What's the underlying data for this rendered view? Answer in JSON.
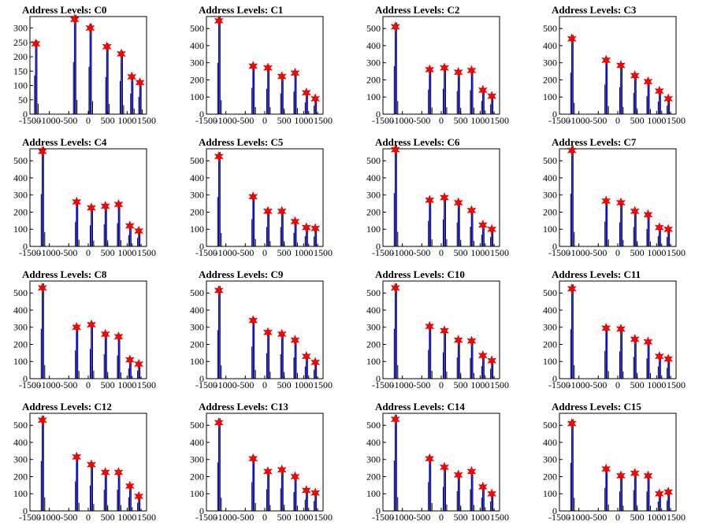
{
  "colors": {
    "histogram": "#000000",
    "fit": "#0000ff",
    "marker": "#ff0000",
    "frame": "#000000"
  },
  "chart_data": [
    {
      "type": "bar",
      "title": "Address Levels: C0",
      "xlim": [
        -1500,
        1500
      ],
      "ylim": [
        0,
        340
      ],
      "yticks": [
        0,
        50,
        100,
        150,
        200,
        250,
        300
      ],
      "xticks": [
        "-1500",
        "-1000",
        "-500",
        "0",
        "500",
        "1000",
        "1500"
      ],
      "peaks": [
        {
          "x": -1350,
          "y": 245
        },
        {
          "x": -350,
          "y": 330
        },
        {
          "x": 50,
          "y": 300
        },
        {
          "x": 480,
          "y": 235
        },
        {
          "x": 850,
          "y": 210
        },
        {
          "x": 1120,
          "y": 130
        },
        {
          "x": 1330,
          "y": 110
        }
      ]
    },
    {
      "type": "bar",
      "title": "Address Levels: C1",
      "xlim": [
        -1500,
        1500
      ],
      "ylim": [
        0,
        570
      ],
      "yticks": [
        0,
        100,
        200,
        300,
        400,
        500
      ],
      "xticks": [
        "-1500",
        "-1000",
        "-500",
        "0",
        "500",
        "1000",
        "1500"
      ],
      "peaks": [
        {
          "x": -1180,
          "y": 545
        },
        {
          "x": -300,
          "y": 280
        },
        {
          "x": 80,
          "y": 270
        },
        {
          "x": 440,
          "y": 220
        },
        {
          "x": 780,
          "y": 240
        },
        {
          "x": 1070,
          "y": 125
        },
        {
          "x": 1300,
          "y": 90
        }
      ]
    },
    {
      "type": "bar",
      "title": "Address Levels: C2",
      "xlim": [
        -1500,
        1500
      ],
      "ylim": [
        0,
        570
      ],
      "yticks": [
        0,
        100,
        200,
        300,
        400,
        500
      ],
      "xticks": [
        "-1500",
        "-1000",
        "-500",
        "0",
        "500",
        "1000",
        "1500"
      ],
      "peaks": [
        {
          "x": -1180,
          "y": 510
        },
        {
          "x": -300,
          "y": 260
        },
        {
          "x": 80,
          "y": 270
        },
        {
          "x": 440,
          "y": 245
        },
        {
          "x": 780,
          "y": 255
        },
        {
          "x": 1070,
          "y": 140
        },
        {
          "x": 1300,
          "y": 105
        }
      ]
    },
    {
      "type": "bar",
      "title": "Address Levels: C3",
      "xlim": [
        -1500,
        1500
      ],
      "ylim": [
        0,
        570
      ],
      "yticks": [
        0,
        100,
        200,
        300,
        400,
        500
      ],
      "xticks": [
        "-1500",
        "-1000",
        "-500",
        "0",
        "500",
        "1000",
        "1500"
      ],
      "peaks": [
        {
          "x": -1180,
          "y": 440
        },
        {
          "x": -300,
          "y": 315
        },
        {
          "x": 80,
          "y": 285
        },
        {
          "x": 440,
          "y": 225
        },
        {
          "x": 780,
          "y": 190
        },
        {
          "x": 1070,
          "y": 135
        },
        {
          "x": 1300,
          "y": 90
        }
      ]
    },
    {
      "type": "bar",
      "title": "Address Levels: C4",
      "xlim": [
        -1500,
        1500
      ],
      "ylim": [
        0,
        570
      ],
      "yticks": [
        0,
        100,
        200,
        300,
        400,
        500
      ],
      "xticks": [
        "-1500",
        "-1000",
        "-500",
        "0",
        "500",
        "1000",
        "1500"
      ],
      "peaks": [
        {
          "x": -1180,
          "y": 555
        },
        {
          "x": -300,
          "y": 260
        },
        {
          "x": 80,
          "y": 225
        },
        {
          "x": 440,
          "y": 235
        },
        {
          "x": 780,
          "y": 245
        },
        {
          "x": 1070,
          "y": 120
        },
        {
          "x": 1300,
          "y": 90
        }
      ]
    },
    {
      "type": "bar",
      "title": "Address Levels: C5",
      "xlim": [
        -1500,
        1500
      ],
      "ylim": [
        0,
        570
      ],
      "yticks": [
        0,
        100,
        200,
        300,
        400,
        500
      ],
      "xticks": [
        "-1500",
        "-1000",
        "-500",
        "0",
        "500",
        "1000",
        "1500"
      ],
      "peaks": [
        {
          "x": -1180,
          "y": 525
        },
        {
          "x": -300,
          "y": 290
        },
        {
          "x": 80,
          "y": 205
        },
        {
          "x": 440,
          "y": 205
        },
        {
          "x": 780,
          "y": 145
        },
        {
          "x": 1070,
          "y": 110
        },
        {
          "x": 1300,
          "y": 105
        }
      ]
    },
    {
      "type": "bar",
      "title": "Address Levels: C6",
      "xlim": [
        -1500,
        1500
      ],
      "ylim": [
        0,
        570
      ],
      "yticks": [
        0,
        100,
        200,
        300,
        400,
        500
      ],
      "xticks": [
        "-1500",
        "-1000",
        "-500",
        "0",
        "500",
        "1000",
        "1500"
      ],
      "peaks": [
        {
          "x": -1180,
          "y": 565
        },
        {
          "x": -300,
          "y": 270
        },
        {
          "x": 80,
          "y": 285
        },
        {
          "x": 440,
          "y": 255
        },
        {
          "x": 780,
          "y": 210
        },
        {
          "x": 1070,
          "y": 125
        },
        {
          "x": 1300,
          "y": 100
        }
      ]
    },
    {
      "type": "bar",
      "title": "Address Levels: C7",
      "xlim": [
        -1500,
        1500
      ],
      "ylim": [
        0,
        570
      ],
      "yticks": [
        0,
        100,
        200,
        300,
        400,
        500
      ],
      "xticks": [
        "-1500",
        "-1000",
        "-500",
        "0",
        "500",
        "1000",
        "1500"
      ],
      "peaks": [
        {
          "x": -1180,
          "y": 560
        },
        {
          "x": -300,
          "y": 265
        },
        {
          "x": 80,
          "y": 255
        },
        {
          "x": 440,
          "y": 205
        },
        {
          "x": 780,
          "y": 185
        },
        {
          "x": 1070,
          "y": 110
        },
        {
          "x": 1300,
          "y": 100
        }
      ]
    },
    {
      "type": "bar",
      "title": "Address Levels: C8",
      "xlim": [
        -1500,
        1500
      ],
      "ylim": [
        0,
        570
      ],
      "yticks": [
        0,
        100,
        200,
        300,
        400,
        500
      ],
      "xticks": [
        "-1500",
        "-1000",
        "-500",
        "0",
        "500",
        "1000",
        "1500"
      ],
      "peaks": [
        {
          "x": -1180,
          "y": 530
        },
        {
          "x": -300,
          "y": 300
        },
        {
          "x": 80,
          "y": 315
        },
        {
          "x": 440,
          "y": 260
        },
        {
          "x": 780,
          "y": 245
        },
        {
          "x": 1070,
          "y": 110
        },
        {
          "x": 1300,
          "y": 85
        }
      ]
    },
    {
      "type": "bar",
      "title": "Address Levels: C9",
      "xlim": [
        -1500,
        1500
      ],
      "ylim": [
        0,
        570
      ],
      "yticks": [
        0,
        100,
        200,
        300,
        400,
        500
      ],
      "xticks": [
        "-1500",
        "-1000",
        "-500",
        "0",
        "500",
        "1000",
        "1500"
      ],
      "peaks": [
        {
          "x": -1180,
          "y": 515
        },
        {
          "x": -300,
          "y": 340
        },
        {
          "x": 80,
          "y": 270
        },
        {
          "x": 440,
          "y": 260
        },
        {
          "x": 780,
          "y": 225
        },
        {
          "x": 1070,
          "y": 130
        },
        {
          "x": 1300,
          "y": 95
        }
      ]
    },
    {
      "type": "bar",
      "title": "Address Levels: C10",
      "xlim": [
        -1500,
        1500
      ],
      "ylim": [
        0,
        570
      ],
      "yticks": [
        0,
        100,
        200,
        300,
        400,
        500
      ],
      "xticks": [
        "-1500",
        "-1000",
        "-500",
        "0",
        "500",
        "1000",
        "1500"
      ],
      "peaks": [
        {
          "x": -1180,
          "y": 530
        },
        {
          "x": -300,
          "y": 305
        },
        {
          "x": 80,
          "y": 280
        },
        {
          "x": 440,
          "y": 225
        },
        {
          "x": 780,
          "y": 220
        },
        {
          "x": 1070,
          "y": 135
        },
        {
          "x": 1300,
          "y": 105
        }
      ]
    },
    {
      "type": "bar",
      "title": "Address Levels: C11",
      "xlim": [
        -1500,
        1500
      ],
      "ylim": [
        0,
        570
      ],
      "yticks": [
        0,
        100,
        200,
        300,
        400,
        500
      ],
      "xticks": [
        "-1500",
        "-1000",
        "-500",
        "0",
        "500",
        "1000",
        "1500"
      ],
      "peaks": [
        {
          "x": -1180,
          "y": 525
        },
        {
          "x": -300,
          "y": 295
        },
        {
          "x": 80,
          "y": 290
        },
        {
          "x": 440,
          "y": 230
        },
        {
          "x": 780,
          "y": 215
        },
        {
          "x": 1070,
          "y": 130
        },
        {
          "x": 1300,
          "y": 115
        }
      ]
    },
    {
      "type": "bar",
      "title": "Address Levels: C12",
      "xlim": [
        -1500,
        1500
      ],
      "ylim": [
        0,
        570
      ],
      "yticks": [
        0,
        100,
        200,
        300,
        400,
        500
      ],
      "xticks": [
        "-1500",
        "-1000",
        "-500",
        "0",
        "500",
        "1000",
        "1500"
      ],
      "peaks": [
        {
          "x": -1180,
          "y": 530
        },
        {
          "x": -300,
          "y": 315
        },
        {
          "x": 80,
          "y": 270
        },
        {
          "x": 440,
          "y": 225
        },
        {
          "x": 780,
          "y": 225
        },
        {
          "x": 1070,
          "y": 145
        },
        {
          "x": 1300,
          "y": 85
        }
      ]
    },
    {
      "type": "bar",
      "title": "Address Levels: C13",
      "xlim": [
        -1500,
        1500
      ],
      "ylim": [
        0,
        570
      ],
      "yticks": [
        0,
        100,
        200,
        300,
        400,
        500
      ],
      "xticks": [
        "-1500",
        "-1000",
        "-500",
        "0",
        "500",
        "1000",
        "1500"
      ],
      "peaks": [
        {
          "x": -1180,
          "y": 515
        },
        {
          "x": -300,
          "y": 305
        },
        {
          "x": 80,
          "y": 230
        },
        {
          "x": 440,
          "y": 240
        },
        {
          "x": 780,
          "y": 200
        },
        {
          "x": 1070,
          "y": 120
        },
        {
          "x": 1300,
          "y": 105
        }
      ]
    },
    {
      "type": "bar",
      "title": "Address Levels: C14",
      "xlim": [
        -1500,
        1500
      ],
      "ylim": [
        0,
        570
      ],
      "yticks": [
        0,
        100,
        200,
        300,
        400,
        500
      ],
      "xticks": [
        "-1500",
        "-1000",
        "-500",
        "0",
        "500",
        "1000",
        "1500"
      ],
      "peaks": [
        {
          "x": -1180,
          "y": 535
        },
        {
          "x": -300,
          "y": 305
        },
        {
          "x": 80,
          "y": 255
        },
        {
          "x": 440,
          "y": 210
        },
        {
          "x": 780,
          "y": 230
        },
        {
          "x": 1070,
          "y": 140
        },
        {
          "x": 1300,
          "y": 100
        }
      ]
    },
    {
      "type": "bar",
      "title": "Address Levels: C15",
      "xlim": [
        -1500,
        1500
      ],
      "ylim": [
        0,
        570
      ],
      "yticks": [
        0,
        100,
        200,
        300,
        400,
        500
      ],
      "xticks": [
        "-1500",
        "-1000",
        "-500",
        "0",
        "500",
        "1000",
        "1500"
      ],
      "peaks": [
        {
          "x": -1180,
          "y": 510
        },
        {
          "x": -300,
          "y": 245
        },
        {
          "x": 80,
          "y": 205
        },
        {
          "x": 440,
          "y": 220
        },
        {
          "x": 780,
          "y": 205
        },
        {
          "x": 1070,
          "y": 100
        },
        {
          "x": 1300,
          "y": 110
        }
      ]
    }
  ]
}
